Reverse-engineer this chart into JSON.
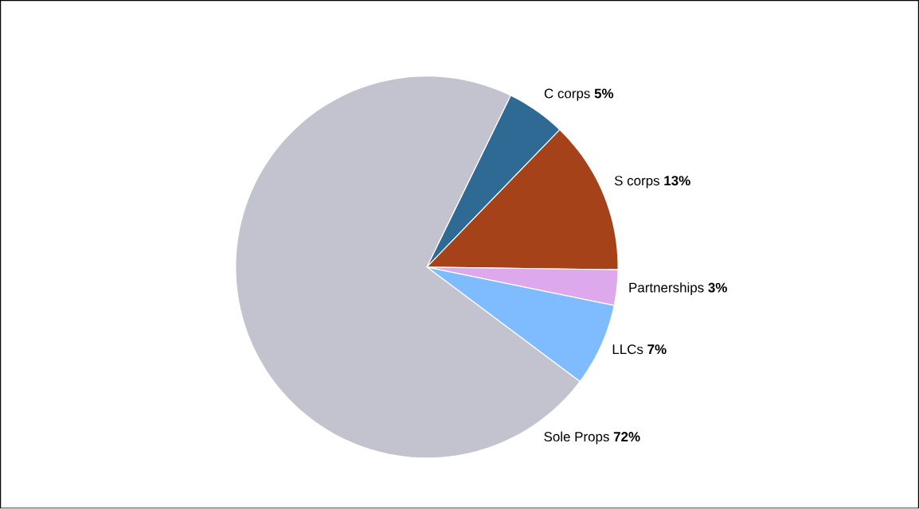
{
  "chart_data": {
    "type": "pie",
    "categories": [
      "C corps",
      "S corps",
      "Partnerships",
      "LLCs",
      "Sole Props"
    ],
    "values": [
      5,
      13,
      3,
      7,
      72
    ],
    "value_labels": [
      "5%",
      "13%",
      "3%",
      "7%",
      "72%"
    ],
    "colors": [
      "#2e6a94",
      "#a5421a",
      "#dda8ec",
      "#7fbbff",
      "#c3c3d0"
    ]
  }
}
